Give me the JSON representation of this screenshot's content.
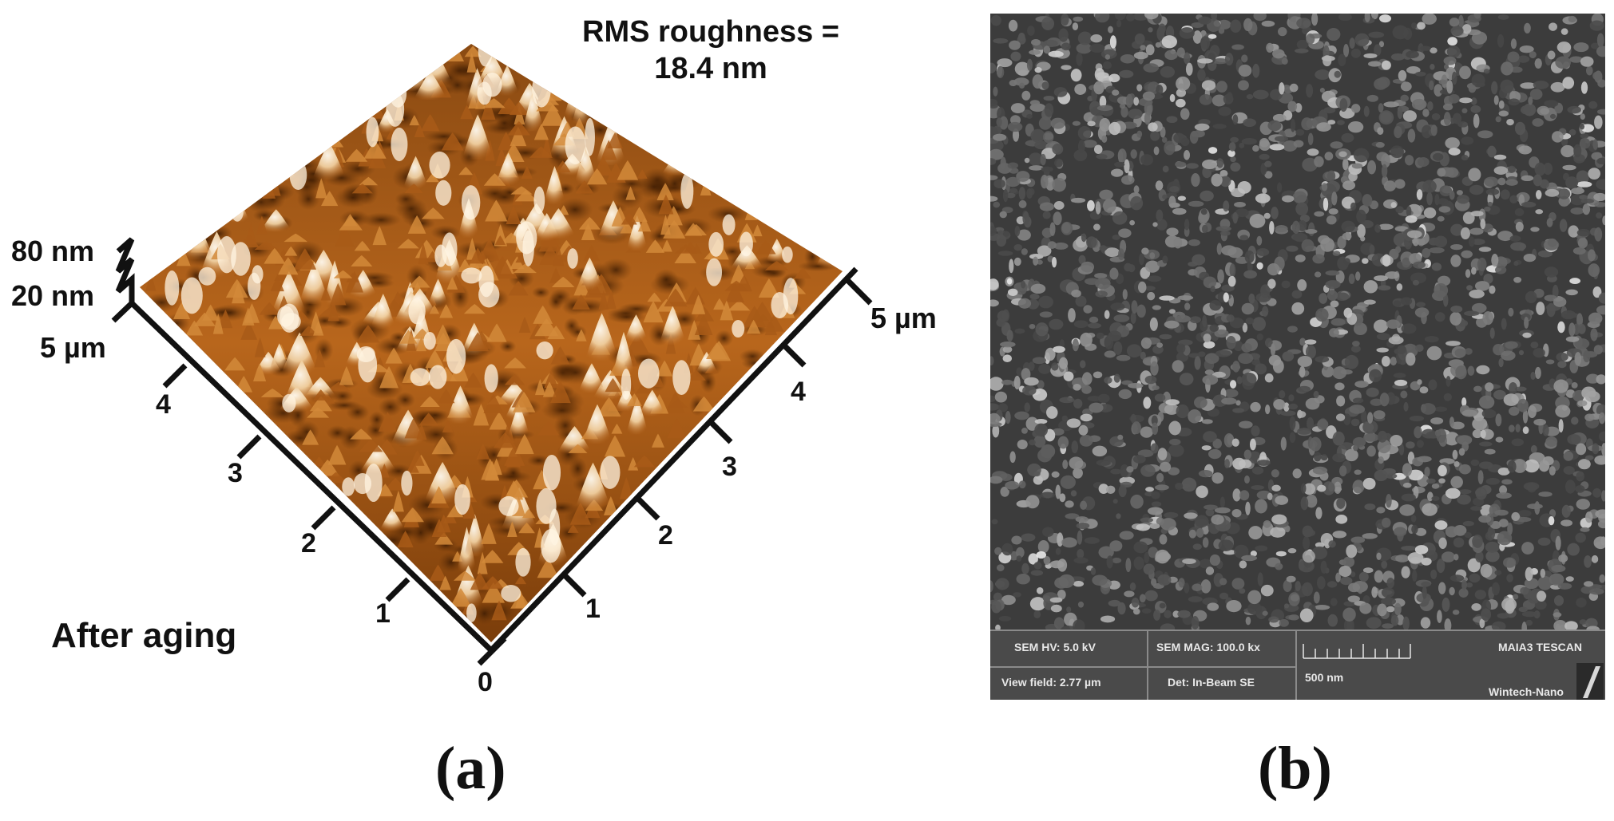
{
  "panel_a": {
    "rms_line1": "RMS roughness =",
    "rms_line2": "18.4 nm",
    "z_top_label": "80 nm",
    "z_bottom_label": "20 nm",
    "left_axis_end_label": "5 µm",
    "right_axis_end_label": "5 µm",
    "origin_label": "0",
    "left_ticks": [
      "1",
      "2",
      "3",
      "4"
    ],
    "right_ticks": [
      "1",
      "2",
      "3",
      "4"
    ],
    "condition_label": "After aging",
    "caption": "(a)",
    "colors": {
      "surface_dark": "#5a2e05",
      "surface_mid": "#b8661c",
      "surface_light": "#e8b070",
      "peak": "#fff6e8"
    }
  },
  "panel_b": {
    "hv": "SEM HV: 5.0 kV",
    "mag": "SEM MAG: 100.0 kx",
    "view_field": "View field: 2.77 µm",
    "detector": "Det: In-Beam SE",
    "scale": "500 nm",
    "instrument": "MAIA3 TESCAN",
    "lab": "Wintech-Nano",
    "caption": "(b)"
  }
}
